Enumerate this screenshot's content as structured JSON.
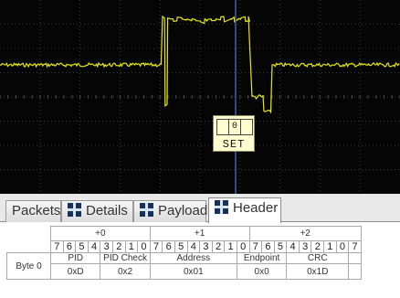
{
  "scope": {
    "trace_color": "#e8e80a",
    "cursor_color": "#3c62b4",
    "grid_color": "#3a3a3a",
    "background": "#050505",
    "decode": {
      "bits": [
        "",
        "0",
        ""
      ],
      "label": "SET"
    }
  },
  "tabs": [
    {
      "label": "Packets",
      "icon": "",
      "active": false
    },
    {
      "label": "Details",
      "icon": "grid-icon",
      "active": false
    },
    {
      "label": "Payload",
      "icon": "grid-icon",
      "active": false
    },
    {
      "label": "Header",
      "icon": "grid-icon",
      "active": true
    }
  ],
  "header_table": {
    "offsets": [
      "+0",
      "+1",
      "+2"
    ],
    "bits": [
      "7",
      "6",
      "5",
      "4",
      "3",
      "2",
      "1",
      "0",
      "7",
      "6",
      "5",
      "4",
      "3",
      "2",
      "1",
      "0",
      "7",
      "6",
      "5",
      "4",
      "3",
      "2",
      "1",
      "0",
      "7"
    ],
    "row_label": "Byte 0",
    "fields": [
      {
        "name": "PID",
        "value": "0xD",
        "span": 4
      },
      {
        "name": "PID Check",
        "value": "0x2",
        "span": 4
      },
      {
        "name": "Address",
        "value": "0x01",
        "span": 7
      },
      {
        "name": "Endpoint",
        "value": "0x0",
        "span": 4
      },
      {
        "name": "CRC",
        "value": "0x1D",
        "span": 5
      },
      {
        "name": "",
        "value": "",
        "span": 1
      }
    ]
  }
}
